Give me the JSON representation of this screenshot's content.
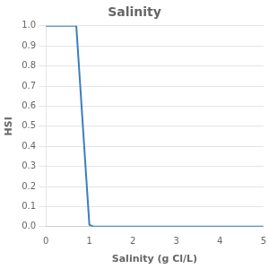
{
  "chart_data": {
    "type": "line",
    "title": "Salinity",
    "xlabel": "Salinity (g Cl/L)",
    "ylabel": "HSI",
    "x": [
      0,
      0.7,
      1.0,
      1.1,
      5
    ],
    "values": [
      1.0,
      1.0,
      0.01,
      0.0,
      0.0
    ],
    "color": "#3a7ec0",
    "xlim": [
      0,
      5
    ],
    "ylim": [
      0,
      1.0
    ],
    "xticks": [
      0,
      1,
      2,
      3,
      4,
      5
    ],
    "yticks": [
      {
        "value": 0.0,
        "label": "0.0"
      },
      0.1,
      0.2,
      0.3,
      0.4,
      0.5,
      0.6,
      0.7,
      0.8,
      0.9,
      {
        "value": 1.0,
        "label": "1.0"
      }
    ],
    "grid": "y"
  }
}
